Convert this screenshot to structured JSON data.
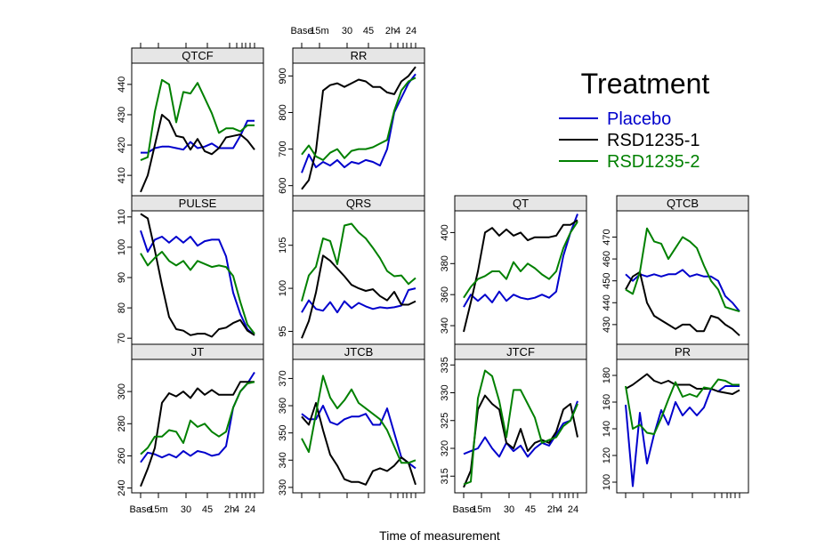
{
  "chart_data": {
    "type": "line",
    "layout": "lattice",
    "xlabel": "Time of measurement",
    "x_ticks": [
      "Base",
      "15m",
      "30",
      "45",
      "2h",
      "4",
      "24"
    ],
    "legend": {
      "title": "Treatment",
      "position": "top-right",
      "entries": [
        {
          "name": "Placebo",
          "color": "#0000cc"
        },
        {
          "name": "RSD1235-1",
          "color": "#000000"
        },
        {
          "name": "RSD1235-2",
          "color": "#008000"
        }
      ]
    },
    "panels": [
      {
        "name": "QTCF",
        "ylim": [
          403,
          447
        ],
        "yticks": [
          410,
          420,
          430,
          440
        ],
        "series": [
          {
            "name": "Placebo",
            "values": [
              417.5,
              417.5,
              419,
              419.5,
              419.5,
              419,
              418.5,
              421,
              419,
              419.5,
              420.5,
              419,
              419,
              419,
              423,
              428,
              428
            ]
          },
          {
            "name": "RSD1235-1",
            "values": [
              404.5,
              410,
              420,
              430,
              428,
              423,
              422.5,
              418.5,
              422,
              418,
              417,
              419,
              422.5,
              423,
              423.5,
              421.5,
              418.5
            ]
          },
          {
            "name": "RSD1235-2",
            "values": [
              415,
              416,
              431,
              441.5,
              440,
              427.5,
              437.5,
              437,
              440.5,
              435.5,
              430.5,
              424,
              425.5,
              425.5,
              424.5,
              426.5,
              426.5
            ]
          }
        ]
      },
      {
        "name": "RR",
        "ylim": [
          570,
          935
        ],
        "yticks": [
          600,
          700,
          800,
          900
        ],
        "series": [
          {
            "name": "Placebo",
            "values": [
              635,
              685,
              650,
              665,
              655,
              670,
              650,
              665,
              660,
              670,
              665,
              655,
              700,
              800,
              840,
              880,
              905
            ]
          },
          {
            "name": "RSD1235-1",
            "values": [
              590,
              615,
              695,
              860,
              875,
              880,
              870,
              880,
              890,
              885,
              870,
              870,
              855,
              850,
              885,
              900,
              925
            ]
          },
          {
            "name": "RSD1235-2",
            "values": [
              685,
              710,
              680,
              670,
              690,
              700,
              675,
              695,
              700,
              700,
              705,
              715,
              725,
              805,
              860,
              885,
              895
            ]
          }
        ]
      },
      {
        "name": "PULSE",
        "ylim": [
          68,
          112
        ],
        "yticks": [
          70,
          80,
          90,
          100,
          110
        ],
        "series": [
          {
            "name": "Placebo",
            "values": [
              105.5,
              98.5,
              102.5,
              103.5,
              101.5,
              103.5,
              101.5,
              103.5,
              100.5,
              102,
              102.5,
              102.5,
              97,
              85,
              78,
              73,
              71
            ]
          },
          {
            "name": "RSD1235-1",
            "values": [
              111,
              109.5,
              99,
              87.5,
              77,
              73,
              72.5,
              71,
              71.5,
              71.5,
              70.5,
              73,
              73.5,
              75,
              76,
              72.5,
              71
            ]
          },
          {
            "name": "RSD1235-2",
            "values": [
              98,
              94,
              96.5,
              98.5,
              95.5,
              94,
              95.5,
              92.5,
              95.5,
              94.5,
              93.5,
              94,
              93.5,
              90.5,
              82,
              74.5,
              71.5
            ]
          }
        ]
      },
      {
        "name": "QRS",
        "ylim": [
          93.5,
          109
        ],
        "yticks": [
          95,
          100,
          105
        ],
        "series": [
          {
            "name": "Placebo",
            "values": [
              97.2,
              98.6,
              97.6,
              97.4,
              98.4,
              97.2,
              98.5,
              97.7,
              98.3,
              97.9,
              97.6,
              97.8,
              97.7,
              97.8,
              98.0,
              99.8,
              100.0
            ]
          },
          {
            "name": "RSD1235-1",
            "values": [
              94.2,
              96.2,
              99.5,
              103.8,
              103.2,
              102.3,
              101.4,
              100.4,
              100.0,
              99.7,
              99.9,
              99.1,
              98.6,
              99.6,
              98.1,
              98.1,
              98.5
            ]
          },
          {
            "name": "RSD1235-2",
            "values": [
              98.5,
              101.5,
              102.5,
              105.8,
              105.5,
              102.8,
              107.3,
              107.5,
              106.5,
              105.8,
              104.7,
              103.5,
              102.0,
              101.4,
              101.5,
              100.5,
              101.2
            ]
          }
        ]
      },
      {
        "name": "QT",
        "ylim": [
          328,
          414
        ],
        "yticks": [
          340,
          360,
          380,
          400
        ],
        "series": [
          {
            "name": "Placebo",
            "values": [
              352,
              360,
              356,
              360,
              355,
              362,
              356,
              360,
              358,
              357,
              358,
              360,
              358,
              362,
              385,
              400,
              412
            ]
          },
          {
            "name": "RSD1235-1",
            "values": [
              336,
              355,
              375,
              400,
              403,
              398,
              402,
              398,
              400,
              395,
              397,
              397,
              397,
              398,
              405,
              405,
              408
            ]
          },
          {
            "name": "RSD1235-2",
            "values": [
              358,
              365,
              370,
              372,
              375,
              375,
              370,
              381,
              375,
              380,
              377,
              373,
              370,
              375,
              390,
              400,
              407
            ]
          }
        ]
      },
      {
        "name": "QTCB",
        "ylim": [
          421,
          482
        ],
        "yticks": [
          430,
          440,
          450,
          460,
          470
        ],
        "series": [
          {
            "name": "Placebo",
            "values": [
              453,
              450,
              453,
              452,
              453,
              452,
              453,
              453,
              455,
              452,
              453,
              452,
              452,
              450,
              443,
              440,
              436
            ]
          },
          {
            "name": "RSD1235-1",
            "values": [
              446,
              452,
              454,
              440,
              434,
              432,
              430,
              428,
              430,
              430,
              427,
              427,
              434,
              433,
              430,
              428,
              425
            ]
          },
          {
            "name": "RSD1235-2",
            "values": [
              446,
              444,
              454,
              474,
              468,
              467,
              460,
              465,
              470,
              468,
              465,
              457,
              450,
              446,
              438,
              437,
              436
            ]
          }
        ]
      },
      {
        "name": "JT",
        "ylim": [
          237,
          320
        ],
        "yticks": [
          240,
          260,
          280,
          300
        ],
        "series": [
          {
            "name": "Placebo",
            "values": [
              256,
              262,
              261,
              259,
              261,
              259,
              263,
              260,
              263,
              262,
              260,
              261,
              266,
              290,
              300,
              305,
              312
            ]
          },
          {
            "name": "RSD1235-1",
            "values": [
              241,
              252,
              265,
              293,
              299,
              297,
              300,
              296,
              302,
              298,
              301,
              298,
              298,
              298,
              306,
              306,
              306
            ]
          },
          {
            "name": "RSD1235-2",
            "values": [
              261,
              265,
              272,
              272,
              276,
              275,
              268,
              282,
              278,
              280,
              275,
              272,
              275,
              290,
              300,
              305,
              306
            ]
          }
        ]
      },
      {
        "name": "JTCB",
        "ylim": [
          328,
          377
        ],
        "yticks": [
          330,
          340,
          350,
          360,
          370
        ],
        "series": [
          {
            "name": "Placebo",
            "values": [
              357,
              355,
              355,
              360,
              354,
              353,
              355,
              356,
              356,
              357,
              353,
              353,
              359,
              350,
              341,
              339,
              337
            ]
          },
          {
            "name": "RSD1235-1",
            "values": [
              356,
              353,
              361,
              351,
              342,
              338,
              333,
              332,
              332,
              331,
              336,
              337,
              336,
              338,
              341,
              339,
              331
            ]
          },
          {
            "name": "RSD1235-2",
            "values": [
              348,
              343,
              357,
              371,
              363,
              359,
              362,
              366,
              361,
              359,
              357,
              355,
              351,
              345,
              339,
              339,
              340
            ]
          }
        ]
      },
      {
        "name": "JTCF",
        "ylim": [
          312,
          336
        ],
        "yticks": [
          315,
          320,
          325,
          330,
          335
        ],
        "series": [
          {
            "name": "Placebo",
            "values": [
              319,
              319.5,
              320,
              322,
              320,
              318.5,
              321,
              319.5,
              320.5,
              318.5,
              320,
              321,
              320.5,
              322.5,
              324.5,
              325,
              328.5
            ]
          },
          {
            "name": "RSD1235-1",
            "values": [
              313,
              316,
              327,
              329.5,
              328,
              327,
              321,
              320,
              323.5,
              319.5,
              321,
              321.5,
              321,
              323,
              327,
              328,
              322
            ]
          },
          {
            "name": "RSD1235-2",
            "values": [
              313.5,
              314,
              329,
              334,
              333,
              328.5,
              322,
              330.5,
              330.5,
              328,
              325.5,
              321,
              321.5,
              322,
              324,
              325,
              328
            ]
          }
        ]
      },
      {
        "name": "PR",
        "ylim": [
          92,
          192
        ],
        "yticks": [
          100,
          120,
          140,
          160,
          180
        ],
        "series": [
          {
            "name": "Placebo",
            "values": [
              158,
              97,
              152,
              114,
              136,
              154,
              143,
              160,
              150,
              156,
              150,
              156,
              170,
              168,
              172,
              172,
              172
            ]
          },
          {
            "name": "RSD1235-1",
            "values": [
              170,
              173,
              177,
              181,
              176,
              174,
              176,
              173,
              173,
              173,
              170,
              170,
              170,
              168,
              167,
              166,
              169
            ]
          },
          {
            "name": "RSD1235-2",
            "values": [
              172,
              140,
              143,
              137,
              136,
              148,
              162,
              175,
              164,
              166,
              164,
              171,
              170,
              177,
              176,
              173,
              173
            ]
          }
        ]
      }
    ]
  }
}
